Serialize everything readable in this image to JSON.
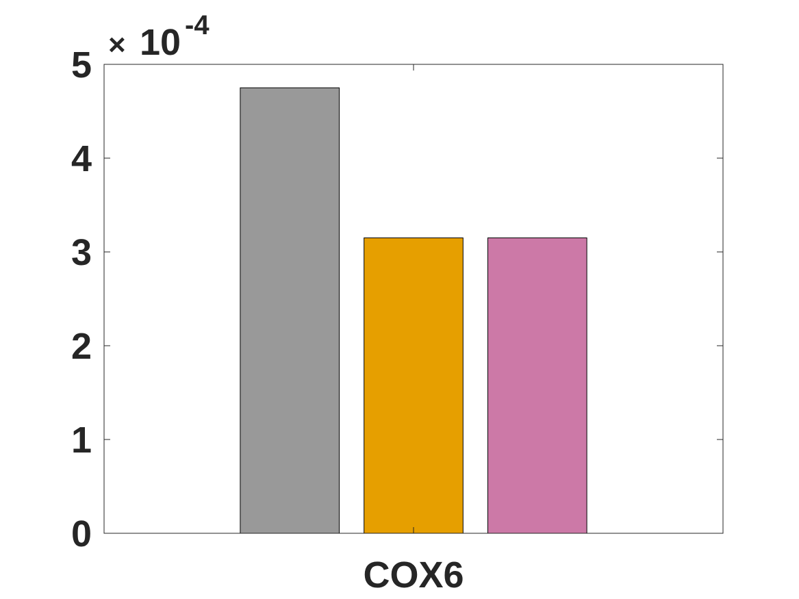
{
  "chart_data": {
    "type": "bar",
    "categories": [
      "COX6"
    ],
    "series": [
      {
        "values": [
          4.75
        ],
        "color": "#999999"
      },
      {
        "values": [
          3.15
        ],
        "color": "#E69F00"
      },
      {
        "values": [
          3.15
        ],
        "color": "#CC79A7"
      }
    ],
    "ylim": [
      0,
      5
    ],
    "yticks": [
      "0",
      "1",
      "2",
      "3",
      "4",
      "5"
    ],
    "y_exponent": {
      "times": "×",
      "base": "10",
      "power": "-4"
    },
    "grid": false,
    "legend": "none",
    "axis_color": "#262626",
    "frame": "box"
  }
}
